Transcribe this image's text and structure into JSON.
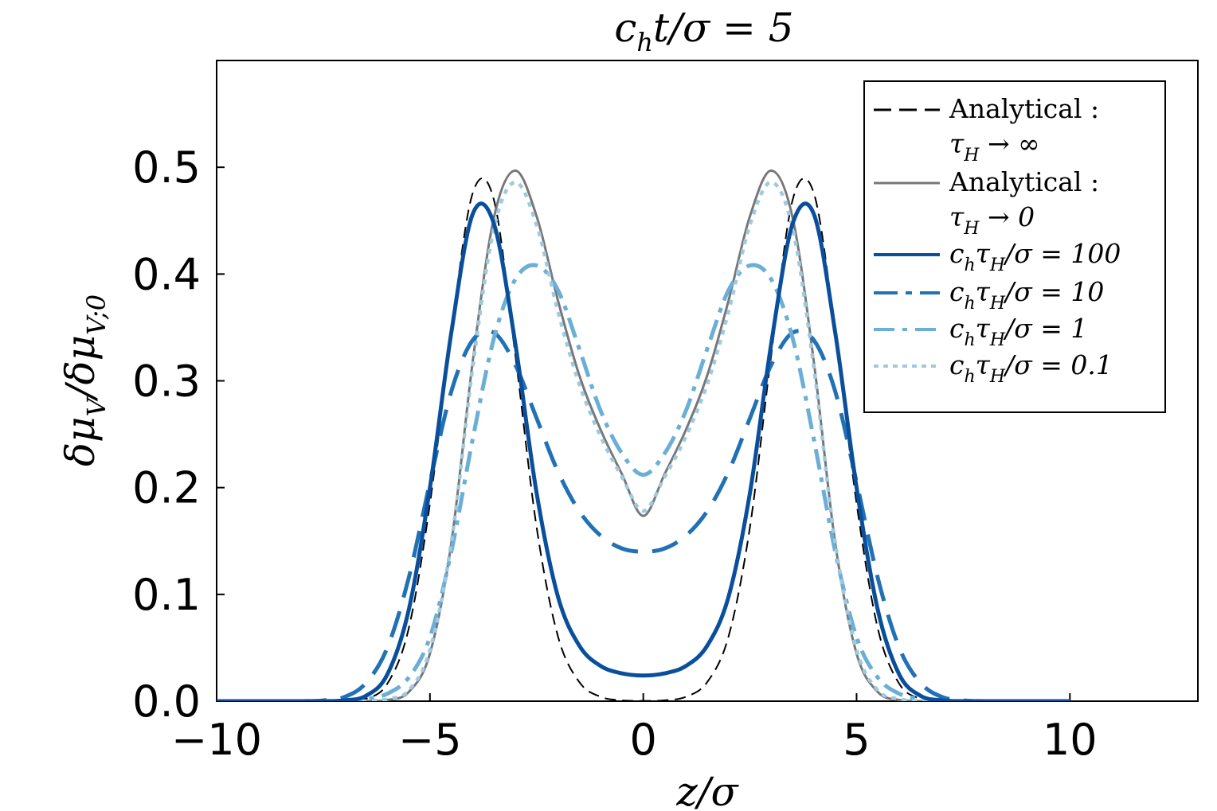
{
  "chart_data": {
    "type": "line",
    "title": "c_h t/σ = 5",
    "xlabel": "z/σ",
    "ylabel": "δμ_V/δμ_{V;0}",
    "xlim": [
      -10,
      13
    ],
    "ylim": [
      0,
      0.6
    ],
    "x_ticks": [
      -10,
      -5,
      0,
      5,
      10
    ],
    "x_tick_labels": [
      "−10",
      "−5",
      "0",
      "5",
      "10"
    ],
    "y_ticks": [
      0.0,
      0.1,
      0.2,
      0.3,
      0.4,
      0.5
    ],
    "y_tick_labels": [
      "0.0",
      "0.1",
      "0.2",
      "0.3",
      "0.4",
      "0.5"
    ],
    "grid": false,
    "legend_position": "top-right",
    "x": [
      -10,
      -9.5,
      -9,
      -8.5,
      -8,
      -7.5,
      -7,
      -6.5,
      -6,
      -5.5,
      -5,
      -4.5,
      -4,
      -3.5,
      -3,
      -2.5,
      -2,
      -1.5,
      -1,
      -0.5,
      0,
      0.5,
      1,
      1.5,
      2,
      2.5,
      3,
      3.5,
      4,
      4.5,
      5,
      5.5,
      6,
      6.5,
      7,
      7.5,
      8,
      8.5,
      9,
      9.5,
      10
    ],
    "series": [
      {
        "name": "Analytical : τ_H → ∞",
        "color": "#000000",
        "style": "dashed",
        "values": [
          0,
          0,
          0,
          0,
          0,
          0,
          0.0002,
          0.0022,
          0.0163,
          0.0677,
          0.1852,
          0.3456,
          0.4755,
          0.4693,
          0.3244,
          0.1629,
          0.0608,
          0.0179,
          0.0041,
          0.0008,
          0.0003,
          0.0008,
          0.0041,
          0.0179,
          0.0608,
          0.1629,
          0.3244,
          0.4693,
          0.4755,
          0.3456,
          0.1852,
          0.0677,
          0.0163,
          0.0022,
          0.0002,
          0,
          0,
          0,
          0,
          0,
          0
        ]
      },
      {
        "name": "Analytical : τ_H → 0",
        "color": "#777777",
        "style": "solid",
        "values": [
          0,
          0,
          0,
          0,
          0,
          0,
          0,
          0.0001,
          0.0011,
          0.0085,
          0.0446,
          0.1477,
          0.3173,
          0.4529,
          0.4969,
          0.4541,
          0.3753,
          0.3052,
          0.2542,
          0.2126,
          0.1735,
          0.2126,
          0.2542,
          0.3052,
          0.3753,
          0.4541,
          0.4969,
          0.4529,
          0.3173,
          0.1477,
          0.0446,
          0.0085,
          0.0011,
          0.0001,
          0,
          0,
          0,
          0,
          0,
          0,
          0
        ]
      },
      {
        "name": "c_h τ_H/σ = 100",
        "color": "#0a4f9c",
        "style": "solid",
        "values": [
          0,
          0,
          0,
          0,
          0,
          0,
          0.0008,
          0.005,
          0.025,
          0.085,
          0.2,
          0.345,
          0.456,
          0.447,
          0.335,
          0.195,
          0.098,
          0.052,
          0.033,
          0.026,
          0.024,
          0.026,
          0.033,
          0.052,
          0.098,
          0.195,
          0.335,
          0.447,
          0.456,
          0.345,
          0.2,
          0.085,
          0.025,
          0.005,
          0.0008,
          0,
          0,
          0,
          0,
          0,
          0
        ]
      },
      {
        "name": "c_h τ_H/σ = 10",
        "color": "#2171b5",
        "style": "longdash",
        "values": [
          0,
          0,
          0,
          0,
          0,
          0.0007,
          0.004,
          0.017,
          0.05,
          0.115,
          0.205,
          0.29,
          0.338,
          0.345,
          0.315,
          0.265,
          0.215,
          0.178,
          0.155,
          0.143,
          0.14,
          0.143,
          0.155,
          0.178,
          0.215,
          0.265,
          0.315,
          0.345,
          0.338,
          0.29,
          0.205,
          0.115,
          0.05,
          0.017,
          0.004,
          0.0007,
          0,
          0,
          0,
          0,
          0
        ]
      },
      {
        "name": "c_h τ_H/σ = 1",
        "color": "#6baed6",
        "style": "dashdot",
        "values": [
          0,
          0,
          0,
          0,
          0,
          0,
          0,
          0.002,
          0.007,
          0.022,
          0.06,
          0.14,
          0.245,
          0.34,
          0.395,
          0.408,
          0.385,
          0.33,
          0.272,
          0.232,
          0.212,
          0.232,
          0.272,
          0.33,
          0.385,
          0.408,
          0.395,
          0.34,
          0.245,
          0.14,
          0.06,
          0.022,
          0.007,
          0.002,
          0,
          0,
          0,
          0,
          0,
          0,
          0
        ]
      },
      {
        "name": "c_h τ_H/σ = 0.1",
        "color": "#9ecae1",
        "style": "dotted",
        "values": [
          0,
          0,
          0,
          0,
          0,
          0,
          0,
          0.0002,
          0.002,
          0.01,
          0.048,
          0.148,
          0.312,
          0.443,
          0.486,
          0.446,
          0.365,
          0.297,
          0.248,
          0.21,
          0.178,
          0.21,
          0.248,
          0.297,
          0.365,
          0.446,
          0.486,
          0.443,
          0.312,
          0.148,
          0.048,
          0.01,
          0.002,
          0.0002,
          0,
          0,
          0,
          0,
          0,
          0,
          0
        ]
      }
    ]
  }
}
